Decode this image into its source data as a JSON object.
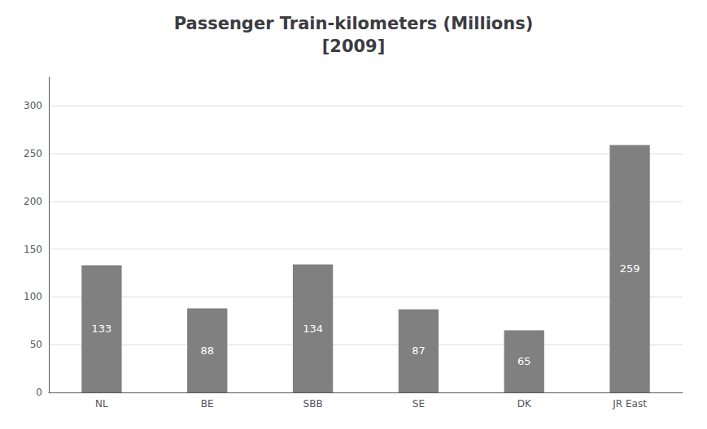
{
  "chart_data": {
    "type": "bar",
    "title": "Passenger Train-kilometers (Millions)\n[2009]",
    "categories": [
      "NL",
      "BE",
      "SBB",
      "SE",
      "DK",
      "JR East"
    ],
    "values": [
      133,
      88,
      134,
      87,
      65,
      259
    ],
    "color": "#808080",
    "ylim": [
      0,
      330
    ],
    "yticks": [
      0,
      50,
      100,
      150,
      200,
      250,
      300
    ],
    "grid": true,
    "data_labels": true
  }
}
